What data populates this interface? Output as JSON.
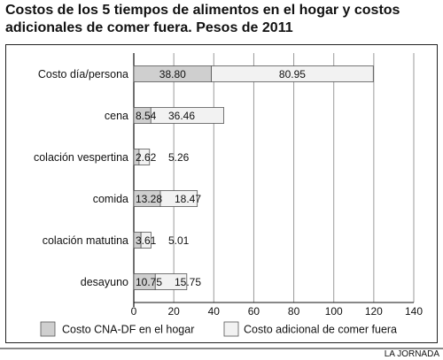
{
  "title": "Costos de los 5 tiempos de alimentos en el hogar y costos adicionales de comer fuera. Pesos de 2011",
  "credit": "LA JORNADA",
  "colors": {
    "hogar": "#cfcfcf",
    "fuera": "#f2f2f2",
    "grid": "#9a9a9a"
  },
  "chart_data": {
    "type": "bar",
    "orientation": "horizontal",
    "stacked": true,
    "categories": [
      "Costo día/persona",
      "cena",
      "colación vespertina",
      "comida",
      "colación matutina",
      "desayuno"
    ],
    "series": [
      {
        "name": "Costo CNA-DF en el hogar",
        "values": [
          38.8,
          8.54,
          2.62,
          13.28,
          3.61,
          10.75
        ]
      },
      {
        "name": "Costo adicional de comer fuera",
        "values": [
          80.95,
          36.46,
          5.26,
          18.47,
          5.01,
          15.75
        ]
      }
    ],
    "labels": [
      [
        "38.80",
        "80.95"
      ],
      [
        "8.54",
        "36.46"
      ],
      [
        "2.62",
        "5.26"
      ],
      [
        "13.28",
        "18.47"
      ],
      [
        "3.61",
        "5.01"
      ],
      [
        "10.75",
        "15.75"
      ]
    ],
    "xlim": [
      0,
      140
    ],
    "xticks": [
      0,
      20,
      40,
      60,
      80,
      100,
      120,
      140
    ],
    "grid": true,
    "legend_placement": "bottom"
  }
}
